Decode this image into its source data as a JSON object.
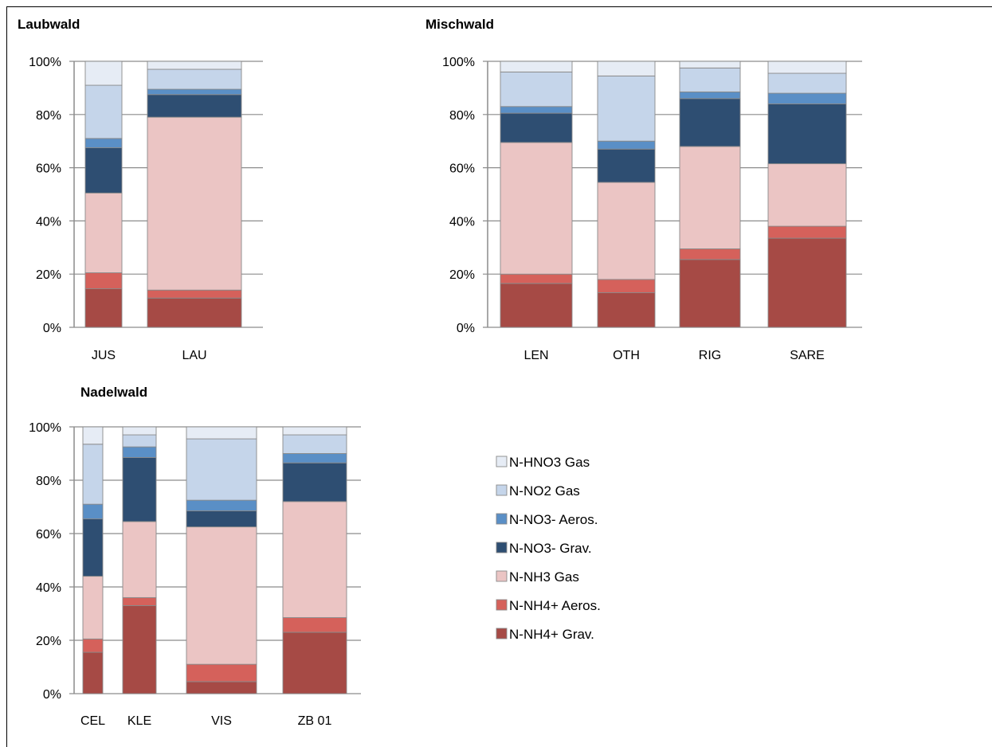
{
  "colors": {
    "n_hno3_gas": "#e6ecf5",
    "n_no2_gas": "#c5d5ea",
    "n_no3_aeros": "#5a8fc6",
    "n_no3_grav": "#2e4e72",
    "n_nh3_gas": "#ebc5c4",
    "n_nh4_aeros": "#d5615b",
    "n_nh4_grav": "#a64a45",
    "axis": "#8c8c8c"
  },
  "legend": {
    "items": [
      {
        "key": "n_hno3_gas",
        "label": "N-HNO3 Gas"
      },
      {
        "key": "n_no2_gas",
        "label": "N-NO2 Gas"
      },
      {
        "key": "n_no3_aeros",
        "label": "N-NO3- Aeros."
      },
      {
        "key": "n_no3_grav",
        "label": "N-NO3- Grav."
      },
      {
        "key": "n_nh3_gas",
        "label": "N-NH3 Gas"
      },
      {
        "key": "n_nh4_aeros",
        "label": "N-NH4+ Aeros."
      },
      {
        "key": "n_nh4_grav",
        "label": "N-NH4+ Grav."
      }
    ]
  },
  "chart_data": [
    {
      "type": "bar",
      "stacked": "percent",
      "title": "Laubwald",
      "y_ticks": [
        "0%",
        "20%",
        "40%",
        "60%",
        "80%",
        "100%"
      ],
      "ylim": [
        0,
        100
      ],
      "categories": [
        "JUS",
        "LAU"
      ],
      "series": [
        {
          "name": "N-NH4+ Grav.",
          "key": "n_nh4_grav",
          "values": [
            14.5,
            11
          ]
        },
        {
          "name": "N-NH4+ Aeros.",
          "key": "n_nh4_aeros",
          "values": [
            6,
            3
          ]
        },
        {
          "name": "N-NH3 Gas",
          "key": "n_nh3_gas",
          "values": [
            30,
            65
          ]
        },
        {
          "name": "N-NO3- Grav.",
          "key": "n_no3_grav",
          "values": [
            17,
            8.5
          ]
        },
        {
          "name": "N-NO3- Aeros.",
          "key": "n_no3_aeros",
          "values": [
            3.5,
            2
          ]
        },
        {
          "name": "N-NO2 Gas",
          "key": "n_no2_gas",
          "values": [
            20,
            7.5
          ]
        },
        {
          "name": "N-HNO3 Gas",
          "key": "n_hno3_gas",
          "values": [
            9,
            3
          ]
        }
      ]
    },
    {
      "type": "bar",
      "stacked": "percent",
      "title": "Mischwald",
      "y_ticks": [
        "0%",
        "20%",
        "40%",
        "60%",
        "80%",
        "100%"
      ],
      "ylim": [
        0,
        100
      ],
      "categories": [
        "LEN",
        "OTH",
        "RIG",
        "SARE"
      ],
      "series": [
        {
          "name": "N-NH4+ Grav.",
          "key": "n_nh4_grav",
          "values": [
            16.5,
            13,
            25.5,
            33.5
          ]
        },
        {
          "name": "N-NH4+ Aeros.",
          "key": "n_nh4_aeros",
          "values": [
            3.5,
            5,
            4,
            4.5
          ]
        },
        {
          "name": "N-NH3 Gas",
          "key": "n_nh3_gas",
          "values": [
            49.5,
            36.5,
            38.5,
            23.5
          ]
        },
        {
          "name": "N-NO3- Grav.",
          "key": "n_no3_grav",
          "values": [
            11,
            12.5,
            18,
            22.5
          ]
        },
        {
          "name": "N-NO3- Aeros.",
          "key": "n_no3_aeros",
          "values": [
            2.5,
            3,
            2.5,
            4
          ]
        },
        {
          "name": "N-NO2 Gas",
          "key": "n_no2_gas",
          "values": [
            13,
            24.5,
            9,
            7.5
          ]
        },
        {
          "name": "N-HNO3 Gas",
          "key": "n_hno3_gas",
          "values": [
            4,
            5.5,
            2.5,
            4.5
          ]
        }
      ]
    },
    {
      "type": "bar",
      "stacked": "percent",
      "title": "Nadelwald",
      "y_ticks": [
        "0%",
        "20%",
        "40%",
        "60%",
        "80%",
        "100%"
      ],
      "ylim": [
        0,
        100
      ],
      "categories": [
        "CEL",
        "KLE",
        "VIS",
        "ZB 01"
      ],
      "series": [
        {
          "name": "N-NH4+ Grav.",
          "key": "n_nh4_grav",
          "values": [
            15.5,
            33,
            4.5,
            23
          ]
        },
        {
          "name": "N-NH4+ Aeros.",
          "key": "n_nh4_aeros",
          "values": [
            5,
            3,
            6.5,
            5.5
          ]
        },
        {
          "name": "N-NH3 Gas",
          "key": "n_nh3_gas",
          "values": [
            23.5,
            28.5,
            51.5,
            43.5
          ]
        },
        {
          "name": "N-NO3- Grav.",
          "key": "n_no3_grav",
          "values": [
            21.5,
            24,
            6,
            14.5
          ]
        },
        {
          "name": "N-NO3- Aeros.",
          "key": "n_no3_aeros",
          "values": [
            5.5,
            4,
            4,
            3.5
          ]
        },
        {
          "name": "N-NO2 Gas",
          "key": "n_no2_gas",
          "values": [
            22.5,
            4.5,
            23,
            7
          ]
        },
        {
          "name": "N-HNO3 Gas",
          "key": "n_hno3_gas",
          "values": [
            6.5,
            3,
            4.5,
            3
          ]
        }
      ]
    }
  ]
}
